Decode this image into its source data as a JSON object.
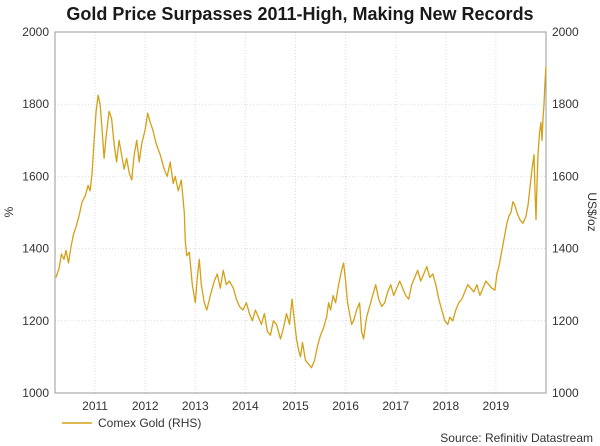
{
  "chart_data": {
    "type": "line",
    "title": "Gold Price Surpasses 2011-High, Making New Records",
    "ylabel_left": "%",
    "ylabel_right": "US$/oz",
    "ylim": [
      1000,
      2000
    ],
    "yticks": [
      1000,
      1200,
      1400,
      1600,
      1800,
      2000
    ],
    "xlim": [
      2010.2,
      2020.0
    ],
    "xticks": [
      {
        "label": "2011",
        "x": 2011.0
      },
      {
        "label": "2012",
        "x": 2012.0
      },
      {
        "label": "2013",
        "x": 2013.0
      },
      {
        "label": "2014",
        "x": 2014.0
      },
      {
        "label": "2015",
        "x": 2015.0
      },
      {
        "label": "2016",
        "x": 2016.0
      },
      {
        "label": "2017",
        "x": 2017.0
      },
      {
        "label": "2018",
        "x": 2018.0
      },
      {
        "label": "2019",
        "x": 2019.0
      }
    ],
    "grid": true,
    "legend_position": "bottom-left",
    "source": "Source: Refinitiv Datastream",
    "series": [
      {
        "name": "Comex Gold (RHS)",
        "color": "#d4a017",
        "points": [
          [
            2010.22,
            1320
          ],
          [
            2010.28,
            1345
          ],
          [
            2010.33,
            1385
          ],
          [
            2010.38,
            1370
          ],
          [
            2010.42,
            1395
          ],
          [
            2010.47,
            1360
          ],
          [
            2010.52,
            1405
          ],
          [
            2010.57,
            1440
          ],
          [
            2010.62,
            1460
          ],
          [
            2010.68,
            1490
          ],
          [
            2010.74,
            1530
          ],
          [
            2010.8,
            1545
          ],
          [
            2010.86,
            1575
          ],
          [
            2010.9,
            1560
          ],
          [
            2010.94,
            1610
          ],
          [
            2010.98,
            1700
          ],
          [
            2011.02,
            1780
          ],
          [
            2011.06,
            1825
          ],
          [
            2011.1,
            1800
          ],
          [
            2011.14,
            1730
          ],
          [
            2011.18,
            1650
          ],
          [
            2011.22,
            1710
          ],
          [
            2011.28,
            1780
          ],
          [
            2011.33,
            1760
          ],
          [
            2011.38,
            1690
          ],
          [
            2011.43,
            1640
          ],
          [
            2011.48,
            1700
          ],
          [
            2011.53,
            1660
          ],
          [
            2011.58,
            1620
          ],
          [
            2011.63,
            1650
          ],
          [
            2011.68,
            1610
          ],
          [
            2011.73,
            1590
          ],
          [
            2011.78,
            1660
          ],
          [
            2011.83,
            1700
          ],
          [
            2011.88,
            1640
          ],
          [
            2011.93,
            1690
          ],
          [
            2012.0,
            1730
          ],
          [
            2012.05,
            1775
          ],
          [
            2012.1,
            1750
          ],
          [
            2012.15,
            1730
          ],
          [
            2012.22,
            1690
          ],
          [
            2012.3,
            1660
          ],
          [
            2012.38,
            1620
          ],
          [
            2012.44,
            1600
          ],
          [
            2012.5,
            1640
          ],
          [
            2012.56,
            1580
          ],
          [
            2012.6,
            1600
          ],
          [
            2012.66,
            1560
          ],
          [
            2012.72,
            1590
          ],
          [
            2012.78,
            1500
          ],
          [
            2012.8,
            1420
          ],
          [
            2012.83,
            1380
          ],
          [
            2012.88,
            1390
          ],
          [
            2012.94,
            1300
          ],
          [
            2013.0,
            1250
          ],
          [
            2013.04,
            1320
          ],
          [
            2013.08,
            1370
          ],
          [
            2013.12,
            1300
          ],
          [
            2013.18,
            1250
          ],
          [
            2013.23,
            1230
          ],
          [
            2013.3,
            1270
          ],
          [
            2013.38,
            1310
          ],
          [
            2013.44,
            1330
          ],
          [
            2013.5,
            1290
          ],
          [
            2013.56,
            1340
          ],
          [
            2013.62,
            1300
          ],
          [
            2013.68,
            1310
          ],
          [
            2013.76,
            1290
          ],
          [
            2013.82,
            1260
          ],
          [
            2013.88,
            1240
          ],
          [
            2013.95,
            1230
          ],
          [
            2014.02,
            1250
          ],
          [
            2014.08,
            1220
          ],
          [
            2014.14,
            1200
          ],
          [
            2014.2,
            1230
          ],
          [
            2014.26,
            1210
          ],
          [
            2014.32,
            1190
          ],
          [
            2014.38,
            1220
          ],
          [
            2014.44,
            1170
          ],
          [
            2014.5,
            1160
          ],
          [
            2014.56,
            1200
          ],
          [
            2014.62,
            1190
          ],
          [
            2014.7,
            1150
          ],
          [
            2014.76,
            1180
          ],
          [
            2014.82,
            1220
          ],
          [
            2014.88,
            1190
          ],
          [
            2014.93,
            1260
          ],
          [
            2014.97,
            1210
          ],
          [
            2015.02,
            1150
          ],
          [
            2015.06,
            1120
          ],
          [
            2015.1,
            1100
          ],
          [
            2015.14,
            1140
          ],
          [
            2015.2,
            1090
          ],
          [
            2015.26,
            1080
          ],
          [
            2015.32,
            1070
          ],
          [
            2015.38,
            1090
          ],
          [
            2015.44,
            1130
          ],
          [
            2015.5,
            1160
          ],
          [
            2015.56,
            1180
          ],
          [
            2015.62,
            1210
          ],
          [
            2015.66,
            1250
          ],
          [
            2015.7,
            1230
          ],
          [
            2015.75,
            1270
          ],
          [
            2015.8,
            1250
          ],
          [
            2015.86,
            1300
          ],
          [
            2015.92,
            1340
          ],
          [
            2015.96,
            1360
          ],
          [
            2016.0,
            1310
          ],
          [
            2016.04,
            1250
          ],
          [
            2016.08,
            1220
          ],
          [
            2016.12,
            1190
          ],
          [
            2016.16,
            1200
          ],
          [
            2016.22,
            1230
          ],
          [
            2016.28,
            1250
          ],
          [
            2016.32,
            1170
          ],
          [
            2016.36,
            1150
          ],
          [
            2016.42,
            1210
          ],
          [
            2016.48,
            1240
          ],
          [
            2016.54,
            1270
          ],
          [
            2016.6,
            1300
          ],
          [
            2016.66,
            1260
          ],
          [
            2016.72,
            1240
          ],
          [
            2016.78,
            1250
          ],
          [
            2016.84,
            1280
          ],
          [
            2016.9,
            1300
          ],
          [
            2016.96,
            1270
          ],
          [
            2017.02,
            1290
          ],
          [
            2017.08,
            1310
          ],
          [
            2017.14,
            1290
          ],
          [
            2017.2,
            1270
          ],
          [
            2017.26,
            1260
          ],
          [
            2017.32,
            1300
          ],
          [
            2017.38,
            1320
          ],
          [
            2017.44,
            1340
          ],
          [
            2017.5,
            1310
          ],
          [
            2017.56,
            1330
          ],
          [
            2017.62,
            1350
          ],
          [
            2017.68,
            1320
          ],
          [
            2017.74,
            1330
          ],
          [
            2017.8,
            1300
          ],
          [
            2017.86,
            1260
          ],
          [
            2017.9,
            1240
          ],
          [
            2017.94,
            1220
          ],
          [
            2017.98,
            1200
          ],
          [
            2018.04,
            1190
          ],
          [
            2018.08,
            1210
          ],
          [
            2018.14,
            1200
          ],
          [
            2018.2,
            1230
          ],
          [
            2018.26,
            1250
          ],
          [
            2018.32,
            1260
          ],
          [
            2018.38,
            1280
          ],
          [
            2018.44,
            1300
          ],
          [
            2018.5,
            1290
          ],
          [
            2018.56,
            1280
          ],
          [
            2018.62,
            1300
          ],
          [
            2018.68,
            1270
          ],
          [
            2018.74,
            1290
          ],
          [
            2018.8,
            1310
          ],
          [
            2018.86,
            1300
          ],
          [
            2018.92,
            1290
          ],
          [
            2018.98,
            1285
          ],
          [
            2019.02,
            1330
          ],
          [
            2019.06,
            1350
          ],
          [
            2019.1,
            1380
          ],
          [
            2019.14,
            1410
          ],
          [
            2019.18,
            1440
          ],
          [
            2019.22,
            1470
          ],
          [
            2019.26,
            1490
          ],
          [
            2019.3,
            1500
          ],
          [
            2019.34,
            1530
          ],
          [
            2019.38,
            1520
          ],
          [
            2019.42,
            1500
          ],
          [
            2019.48,
            1480
          ],
          [
            2019.54,
            1470
          ],
          [
            2019.6,
            1490
          ],
          [
            2019.64,
            1520
          ],
          [
            2019.68,
            1570
          ],
          [
            2019.72,
            1620
          ],
          [
            2019.76,
            1660
          ],
          [
            2019.78,
            1560
          ],
          [
            2019.8,
            1480
          ],
          [
            2019.82,
            1580
          ],
          [
            2019.84,
            1660
          ],
          [
            2019.87,
            1720
          ],
          [
            2019.9,
            1750
          ],
          [
            2019.92,
            1700
          ],
          [
            2019.94,
            1760
          ],
          [
            2019.96,
            1800
          ],
          [
            2019.98,
            1860
          ],
          [
            2020.0,
            1905
          ]
        ]
      }
    ]
  }
}
